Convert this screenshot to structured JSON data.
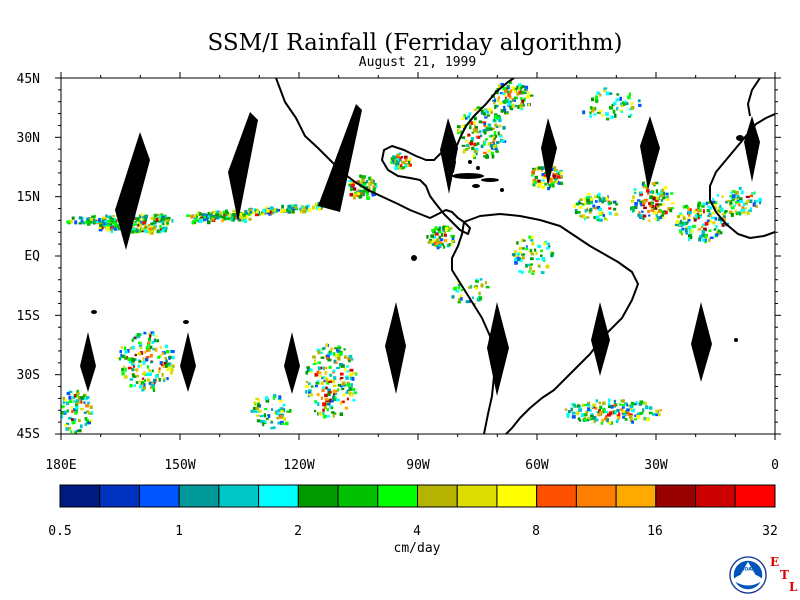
{
  "title": "SSM/I Rainfall (Ferriday algorithm)",
  "subtitle": "August 21, 1999",
  "map": {
    "lon_range": [
      180,
      360
    ],
    "lat_range": [
      -45,
      45
    ],
    "lat_labels": [
      "45N",
      "30N",
      "15N",
      "EQ",
      "15S",
      "30S",
      "45S"
    ],
    "lon_labels": [
      "180E",
      "150W",
      "120W",
      "90W",
      "60W",
      "30W",
      "0"
    ]
  },
  "colorbar": {
    "colors": [
      "#001a80",
      "#0033c0",
      "#0055ff",
      "#009999",
      "#00c8c8",
      "#00ffff",
      "#009900",
      "#00c000",
      "#00ff00",
      "#b4b400",
      "#dcdc00",
      "#ffff00",
      "#ff5000",
      "#ff8000",
      "#ffaa00",
      "#990000",
      "#cc0000",
      "#ff0000"
    ],
    "tick_labels": [
      "0.5",
      "1",
      "2",
      "4",
      "8",
      "16",
      "32"
    ],
    "units": "cm/day"
  },
  "logo": {
    "text": "NOAA",
    "etl_letters": [
      "E",
      "T",
      "L"
    ]
  }
}
